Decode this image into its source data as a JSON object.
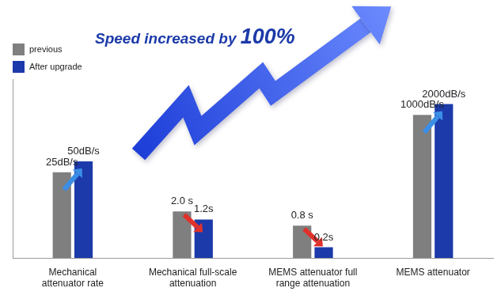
{
  "chart_data": {
    "type": "bar",
    "title": "Speed increased by 100%",
    "categories": [
      "Mechanical attenuator rate",
      "Mechanical full-scale attenuation",
      "MEMS attenuator full range attenuation",
      "MEMS attenuator"
    ],
    "series": [
      {
        "name": "previous",
        "color": "#7f7f7f",
        "values": [
          25,
          2.0,
          0.8,
          1000
        ],
        "value_labels": [
          "25dB/s",
          "2.0 s",
          "0.8 s",
          "1000dB/s"
        ]
      },
      {
        "name": "After upgrade",
        "color": "#1c3aa9",
        "values": [
          50,
          1.2,
          0.2,
          2000
        ],
        "value_labels": [
          "50dB/s",
          "1.2s",
          "0.2s",
          "2000dB/s"
        ]
      }
    ],
    "log": "y",
    "ylim": [
      0.1,
      10000
    ],
    "yticks": [
      0.1,
      1,
      10,
      100,
      1000,
      10000
    ],
    "grid": false,
    "legend": "upper left",
    "data_labels": true,
    "tick_labels": "x"
  }
}
